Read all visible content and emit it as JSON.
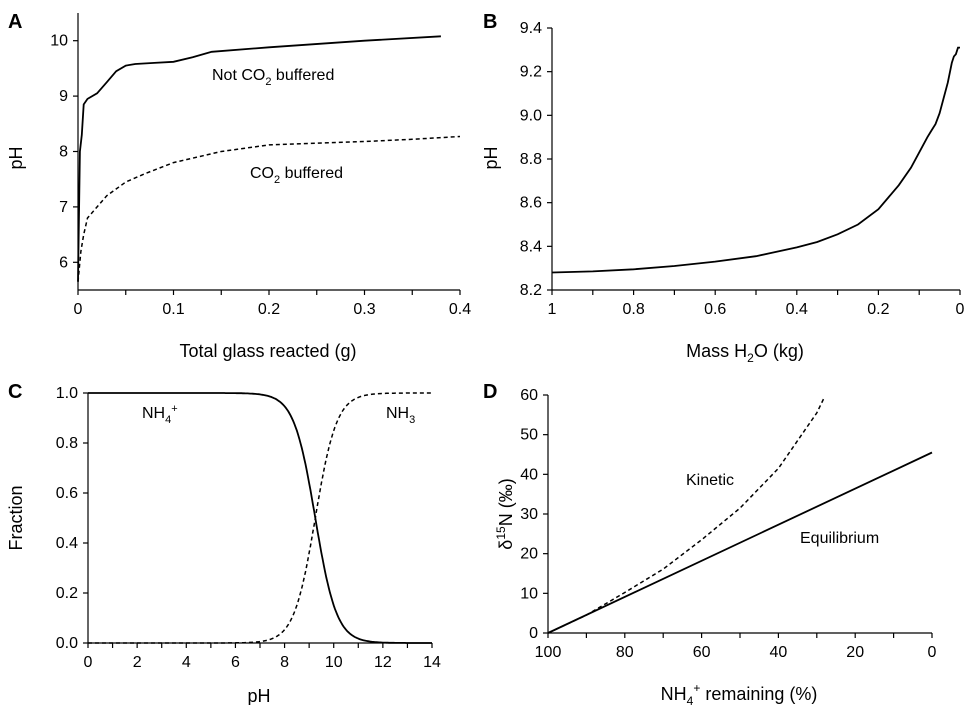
{
  "chart_data": [
    {
      "panel": "A",
      "type": "line",
      "xlabel": "Total glass reacted (g)",
      "ylabel": "pH",
      "xlim": [
        0,
        0.4
      ],
      "ylim": [
        5.5,
        10.5
      ],
      "xticks": [
        "0",
        "0.1",
        "0.2",
        "0.3",
        "0.4"
      ],
      "yticks": [
        "6",
        "7",
        "8",
        "9",
        "10"
      ],
      "series": [
        {
          "name": "Not CO2 buffered",
          "style": "solid",
          "x": [
            0,
            0.002,
            0.004,
            0.006,
            0.01,
            0.02,
            0.03,
            0.04,
            0.05,
            0.06,
            0.08,
            0.1,
            0.12,
            0.14,
            0.2,
            0.3,
            0.38
          ],
          "y": [
            5.65,
            8.0,
            8.3,
            8.85,
            8.95,
            9.05,
            9.25,
            9.45,
            9.55,
            9.58,
            9.6,
            9.62,
            9.7,
            9.8,
            9.88,
            10.0,
            10.08
          ]
        },
        {
          "name": "CO2 buffered",
          "style": "dashed",
          "x": [
            0,
            0.003,
            0.006,
            0.01,
            0.02,
            0.03,
            0.05,
            0.07,
            0.1,
            0.15,
            0.2,
            0.25,
            0.3,
            0.35,
            0.4
          ],
          "y": [
            5.65,
            6.2,
            6.5,
            6.8,
            7.0,
            7.2,
            7.45,
            7.6,
            7.8,
            8.0,
            8.12,
            8.15,
            8.18,
            8.22,
            8.27
          ]
        }
      ],
      "annotations": [
        {
          "prefix": "Not CO",
          "sub": "2",
          "suffix": " buffered"
        },
        {
          "prefix": "CO",
          "sub": "2",
          "suffix": " buffered"
        }
      ]
    },
    {
      "panel": "B",
      "type": "line",
      "xlabel": "Mass H2O (kg)",
      "ylabel": "pH",
      "xlim": [
        1,
        0
      ],
      "ylim": [
        8.2,
        9.4
      ],
      "xticks": [
        "1",
        "0.8",
        "0.6",
        "0.4",
        "0.2",
        "0"
      ],
      "yticks": [
        "8.2",
        "8.4",
        "8.6",
        "8.8",
        "9.0",
        "9.2",
        "9.4"
      ],
      "series": [
        {
          "name": "",
          "style": "solid",
          "x": [
            1,
            0.9,
            0.8,
            0.7,
            0.6,
            0.5,
            0.4,
            0.35,
            0.3,
            0.25,
            0.2,
            0.15,
            0.12,
            0.1,
            0.08,
            0.07,
            0.06,
            0.05,
            0.04,
            0.03,
            0.02,
            0.015,
            0.01,
            0.005,
            0
          ],
          "y": [
            8.28,
            8.285,
            8.295,
            8.31,
            8.33,
            8.355,
            8.395,
            8.42,
            8.455,
            8.5,
            8.57,
            8.68,
            8.76,
            8.83,
            8.9,
            8.93,
            8.96,
            9.01,
            9.08,
            9.15,
            9.24,
            9.27,
            9.28,
            9.31,
            9.31
          ]
        }
      ]
    },
    {
      "panel": "C",
      "type": "line",
      "xlabel": "pH",
      "ylabel": "Fraction",
      "xlim": [
        0,
        14
      ],
      "ylim": [
        0,
        1
      ],
      "xticks": [
        "0",
        "2",
        "4",
        "6",
        "8",
        "10",
        "12",
        "14"
      ],
      "yticks": [
        "0.0",
        "0.2",
        "0.4",
        "0.6",
        "0.8",
        "1.0"
      ],
      "pKa": 9.25,
      "series": [
        {
          "name": "NH4+",
          "style": "solid",
          "x_start": 0,
          "x_end": 14
        },
        {
          "name": "NH3",
          "style": "dashed",
          "x_start": 0,
          "x_end": 14
        }
      ],
      "annotations": [
        {
          "prefix": "NH",
          "sub": "4",
          "sup": "+"
        },
        {
          "prefix": "NH",
          "sub": "3",
          "sup": ""
        }
      ]
    },
    {
      "panel": "D",
      "type": "line",
      "xlabel": "NH4+ remaining (%)",
      "ylabel": "δ15N (‰)",
      "xlim": [
        100,
        0
      ],
      "ylim": [
        0,
        60
      ],
      "xticks": [
        "100",
        "80",
        "60",
        "40",
        "20",
        "0"
      ],
      "yticks": [
        "0",
        "10",
        "20",
        "30",
        "40",
        "50",
        "60"
      ],
      "series": [
        {
          "name": "Kinetic",
          "style": "dashed",
          "x": [
            100,
            90,
            80,
            70,
            60,
            50,
            40,
            35,
            30,
            28
          ],
          "y": [
            0,
            4.5,
            10.2,
            16.1,
            23.5,
            31.5,
            41.5,
            48.5,
            55.5,
            59.5
          ]
        },
        {
          "name": "Equilibrium",
          "style": "solid",
          "x": [
            100,
            0
          ],
          "y": [
            0,
            45.5
          ]
        }
      ],
      "annotations": [
        {
          "text": "Kinetic"
        },
        {
          "text": "Equilibrium"
        }
      ]
    }
  ],
  "labels": {
    "panelA": "A",
    "panelB": "B",
    "panelC": "C",
    "panelD": "D",
    "a_xlabel": "Total glass reacted (g)",
    "a_ylabel": "pH",
    "b_xlabel_prefix": "Mass H",
    "b_xlabel_sub": "2",
    "b_xlabel_suffix": "O (kg)",
    "b_ylabel": "pH",
    "c_xlabel": "pH",
    "c_ylabel": "Fraction",
    "d_xlabel_prefix": "NH",
    "d_xlabel_sub": "4",
    "d_xlabel_sup": "+",
    "d_xlabel_suffix": " remaining (%)",
    "d_ylabel_prefix": "δ",
    "d_ylabel_sup": "15",
    "d_ylabel_suffix": "N (‰)"
  }
}
